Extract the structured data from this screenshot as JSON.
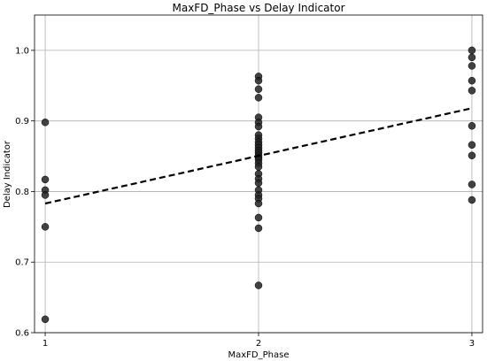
{
  "chart_data": {
    "type": "scatter",
    "title": "MaxFD_Phase vs Delay Indicator",
    "xlabel": "MaxFD_Phase",
    "ylabel": "Delay Indicator",
    "xlim": [
      0.95,
      3.05
    ],
    "ylim": [
      0.6,
      1.05
    ],
    "xticks": [
      1,
      2,
      3
    ],
    "yticks": [
      0.6,
      0.7,
      0.8,
      0.9,
      1.0
    ],
    "ytick_labels": [
      "0.6",
      "0.7",
      "0.8",
      "0.9",
      "1.0"
    ],
    "xtick_labels": [
      "1",
      "2",
      "3"
    ],
    "grid": true,
    "colors": {
      "points": "#222222",
      "trend": "#000000",
      "grid": "#b0b0b0"
    },
    "series": [
      {
        "kind": "points",
        "points": [
          [
            1,
            0.898
          ],
          [
            1,
            0.817
          ],
          [
            1,
            0.802
          ],
          [
            1,
            0.795
          ],
          [
            1,
            0.75
          ],
          [
            1,
            0.619
          ],
          [
            2,
            0.963
          ],
          [
            2,
            0.957
          ],
          [
            2,
            0.945
          ],
          [
            2,
            0.933
          ],
          [
            2,
            0.905
          ],
          [
            2,
            0.898
          ],
          [
            2,
            0.892
          ],
          [
            2,
            0.88
          ],
          [
            2,
            0.875
          ],
          [
            2,
            0.87
          ],
          [
            2,
            0.866
          ],
          [
            2,
            0.862
          ],
          [
            2,
            0.858
          ],
          [
            2,
            0.855
          ],
          [
            2,
            0.851
          ],
          [
            2,
            0.848
          ],
          [
            2,
            0.845
          ],
          [
            2,
            0.84
          ],
          [
            2,
            0.835
          ],
          [
            2,
            0.825
          ],
          [
            2,
            0.818
          ],
          [
            2,
            0.812
          ],
          [
            2,
            0.802
          ],
          [
            2,
            0.795
          ],
          [
            2,
            0.79
          ],
          [
            2,
            0.783
          ],
          [
            2,
            0.763
          ],
          [
            2,
            0.748
          ],
          [
            2,
            0.667
          ],
          [
            3,
            1.0
          ],
          [
            3,
            0.99
          ],
          [
            3,
            0.978
          ],
          [
            3,
            0.957
          ],
          [
            3,
            0.943
          ],
          [
            3,
            0.893
          ],
          [
            3,
            0.866
          ],
          [
            3,
            0.851
          ],
          [
            3,
            0.81
          ],
          [
            3,
            0.788
          ]
        ]
      },
      {
        "kind": "trend",
        "style": "dashed",
        "x": [
          1,
          3
        ],
        "y": [
          0.783,
          0.918
        ]
      }
    ]
  }
}
